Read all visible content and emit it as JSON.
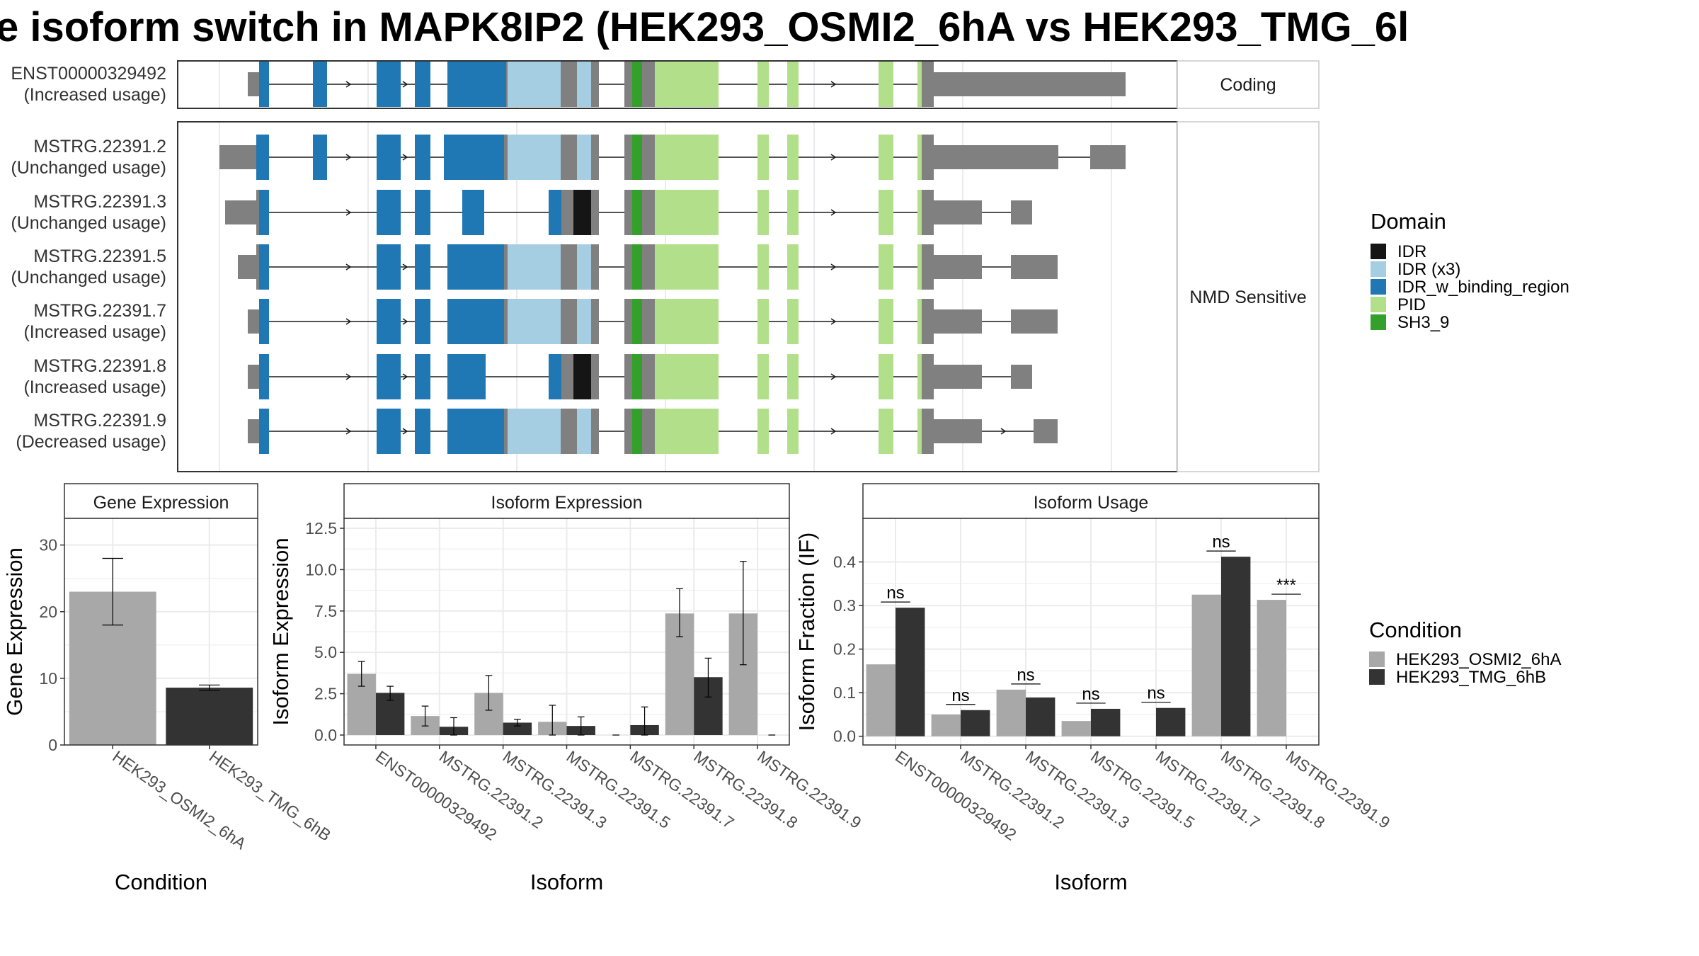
{
  "title": "e isoform switch in MAPK8IP2 (HEK293_OSMI2_6hA vs HEK293_TMG_6l",
  "colors": {
    "IDR": "#151515",
    "IDR (x3)": "#a6cee3",
    "IDR_w_binding_region": "#1f78b4",
    "PID": "#b2df8a",
    "SH3_9": "#33a02c",
    "none": "#808080",
    "HEK293_OSMI2_6hA": "#a8a8a8",
    "HEK293_TMG_6hB": "#333333"
  },
  "structure": {
    "coding_strip": "Coding",
    "nmd_strip": "NMD Sensitive",
    "isoforms": [
      {
        "id": "ENST00000329492",
        "usage": "(Increased usage)",
        "group": "coding"
      },
      {
        "id": "MSTRG.22391.2",
        "usage": "(Unchanged usage)",
        "group": "nmd"
      },
      {
        "id": "MSTRG.22391.3",
        "usage": "(Unchanged usage)",
        "group": "nmd"
      },
      {
        "id": "MSTRG.22391.5",
        "usage": "(Unchanged usage)",
        "group": "nmd"
      },
      {
        "id": "MSTRG.22391.7",
        "usage": "(Increased usage)",
        "group": "nmd"
      },
      {
        "id": "MSTRG.22391.8",
        "usage": "(Increased usage)",
        "group": "nmd"
      },
      {
        "id": "MSTRG.22391.9",
        "usage": "(Decreased usage)",
        "group": "nmd"
      }
    ]
  },
  "legend": {
    "domain_title": "Domain",
    "domain_items": [
      "IDR",
      "IDR (x3)",
      "IDR_w_binding_region",
      "PID",
      "SH3_9"
    ],
    "condition_title": "Condition",
    "condition_items": [
      "HEK293_OSMI2_6hA",
      "HEK293_TMG_6hB"
    ]
  },
  "chart_data": [
    {
      "type": "bar",
      "title": "Gene Expression",
      "xlabel": "Condition",
      "ylabel": "Gene Expression",
      "categories": [
        "HEK293_OSMI2_6hA",
        "HEK293_TMG_6hB"
      ],
      "values": [
        23.0,
        8.6
      ],
      "error_low": [
        18.0,
        8.2
      ],
      "error_high": [
        28.0,
        9.0
      ],
      "ylim": [
        0,
        34
      ],
      "yticks": [
        0,
        10,
        20,
        30
      ]
    },
    {
      "type": "bar",
      "title": "Isoform Expression",
      "xlabel": "Isoform",
      "ylabel": "Isoform Expression",
      "categories": [
        "ENST00000329492",
        "MSTRG.22391.2",
        "MSTRG.22391.3",
        "MSTRG.22391.5",
        "MSTRG.22391.7",
        "MSTRG.22391.8",
        "MSTRG.22391.9"
      ],
      "series": [
        {
          "name": "HEK293_OSMI2_6hA",
          "values": [
            3.7,
            1.15,
            2.55,
            0.8,
            0.0,
            7.35,
            7.35
          ],
          "error_low": [
            2.95,
            0.55,
            1.5,
            0.0,
            0.0,
            5.95,
            4.25
          ],
          "error_high": [
            4.45,
            1.75,
            3.6,
            1.8,
            0.0,
            8.85,
            10.5
          ]
        },
        {
          "name": "HEK293_TMG_6hB",
          "values": [
            2.55,
            0.5,
            0.75,
            0.55,
            0.6,
            3.5,
            0.0
          ],
          "error_low": [
            2.1,
            0.0,
            0.55,
            0.0,
            0.0,
            2.3,
            0.0
          ],
          "error_high": [
            2.95,
            1.05,
            0.95,
            1.1,
            1.7,
            4.65,
            0.0
          ]
        }
      ],
      "ylim": [
        -0.6,
        13.1
      ],
      "yticks": [
        0.0,
        2.5,
        5.0,
        7.5,
        10.0,
        12.5
      ],
      "ytick_labels": [
        "0.0",
        "2.5",
        "5.0",
        "7.5",
        "10.0",
        "12.5"
      ]
    },
    {
      "type": "bar",
      "title": "Isoform Usage",
      "xlabel": "Isoform",
      "ylabel": "Isoform Fraction (IF)",
      "categories": [
        "ENST00000329492",
        "MSTRG.22391.2",
        "MSTRG.22391.3",
        "MSTRG.22391.5",
        "MSTRG.22391.7",
        "MSTRG.22391.8",
        "MSTRG.22391.9"
      ],
      "series": [
        {
          "name": "HEK293_OSMI2_6hA",
          "values": [
            0.165,
            0.05,
            0.107,
            0.035,
            0.0,
            0.325,
            0.313
          ]
        },
        {
          "name": "HEK293_TMG_6hB",
          "values": [
            0.295,
            0.06,
            0.089,
            0.063,
            0.065,
            0.412,
            0.0
          ]
        }
      ],
      "significance": [
        "ns",
        "ns",
        "ns",
        "ns",
        "ns",
        "ns",
        "***"
      ],
      "ylim": [
        -0.02,
        0.5
      ],
      "yticks": [
        0.0,
        0.1,
        0.2,
        0.3,
        0.4
      ],
      "ytick_labels": [
        "0.0",
        "0.1",
        "0.2",
        "0.3",
        "0.4"
      ]
    }
  ]
}
